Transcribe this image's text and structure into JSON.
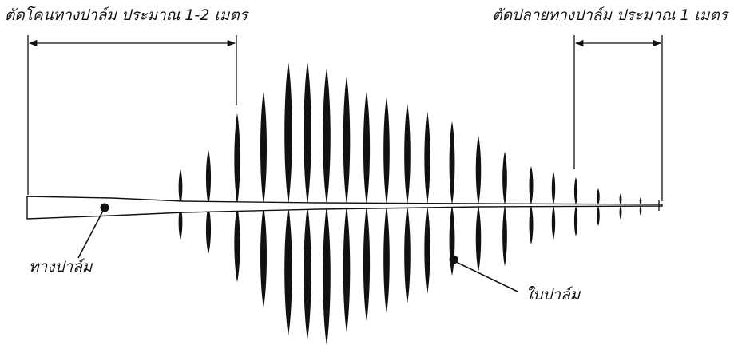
{
  "labels": {
    "cut_base": "ตัดโคนทางปาล์ม ประมาณ 1-2 เมตร",
    "cut_tip": "ตัดปลายทางปาล์ม ประมาณ 1 เมตร",
    "rachis": "ทางปาล์ม",
    "leaflet": "ใบปาล์ม"
  },
  "colors": {
    "ink": "#111111",
    "background": "#ffffff"
  }
}
